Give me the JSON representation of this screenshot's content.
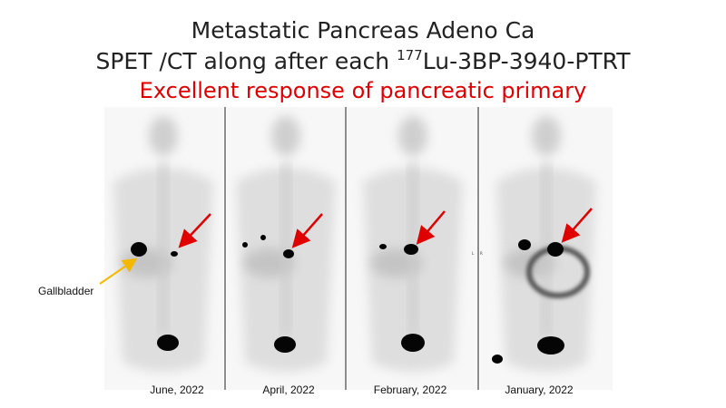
{
  "header": {
    "title_line1": "Metastatic Pancreas Adeno Ca",
    "title_line2": {
      "before": "SPET /CT along after each ",
      "superscript": "177",
      "after": "Lu-3BP-3940-PTRT"
    },
    "subtitle": "Excellent response of pancreatic primary"
  },
  "annotations": {
    "gallbladder": "Gallbladder",
    "left_marker": "L",
    "right_marker": "R"
  },
  "panels": [
    {
      "date": "June, 2022"
    },
    {
      "date": "April, 2022"
    },
    {
      "date": "February, 2022"
    },
    {
      "date": "January, 2022"
    }
  ]
}
